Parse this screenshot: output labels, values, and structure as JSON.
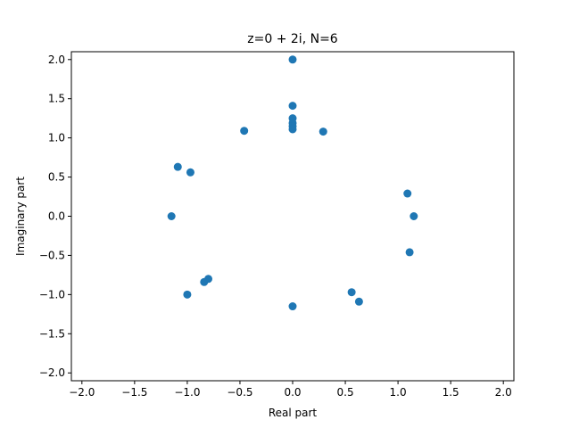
{
  "chart_data": {
    "type": "scatter",
    "title": "z=0 + 2i, N=6",
    "xlabel": "Real part",
    "ylabel": "Imaginary part",
    "xlim": [
      -2.1,
      2.1
    ],
    "ylim": [
      -2.1,
      2.1
    ],
    "xticks": [
      -2.0,
      -1.5,
      -1.0,
      -0.5,
      0.0,
      0.5,
      1.0,
      1.5,
      2.0
    ],
    "xtick_labels": [
      "−2.0",
      "−1.5",
      "−1.0",
      "−0.5",
      "0.0",
      "0.5",
      "1.0",
      "1.5",
      "2.0"
    ],
    "yticks": [
      -2.0,
      -1.5,
      -1.0,
      -0.5,
      0.0,
      0.5,
      1.0,
      1.5,
      2.0
    ],
    "ytick_labels": [
      "−2.0",
      "−1.5",
      "−1.0",
      "−0.5",
      "0.0",
      "0.5",
      "1.0",
      "1.5",
      "2.0"
    ],
    "grid": false,
    "marker_color": "#1f77b4",
    "series": [
      {
        "x": [
          0.0,
          0.0,
          0.0,
          0.0,
          0.0,
          0.0,
          -0.46,
          0.29,
          -1.09,
          -0.97,
          -1.15,
          1.09,
          1.15,
          1.11,
          -0.8,
          -0.84,
          -1.0,
          0.56,
          0.63,
          0.0
        ],
        "y": [
          2.0,
          1.41,
          1.25,
          1.19,
          1.15,
          1.11,
          1.09,
          1.08,
          0.63,
          0.56,
          0.0,
          0.29,
          0.0,
          -0.46,
          -0.8,
          -0.84,
          -1.0,
          -0.97,
          -1.09,
          -1.15
        ]
      }
    ]
  }
}
